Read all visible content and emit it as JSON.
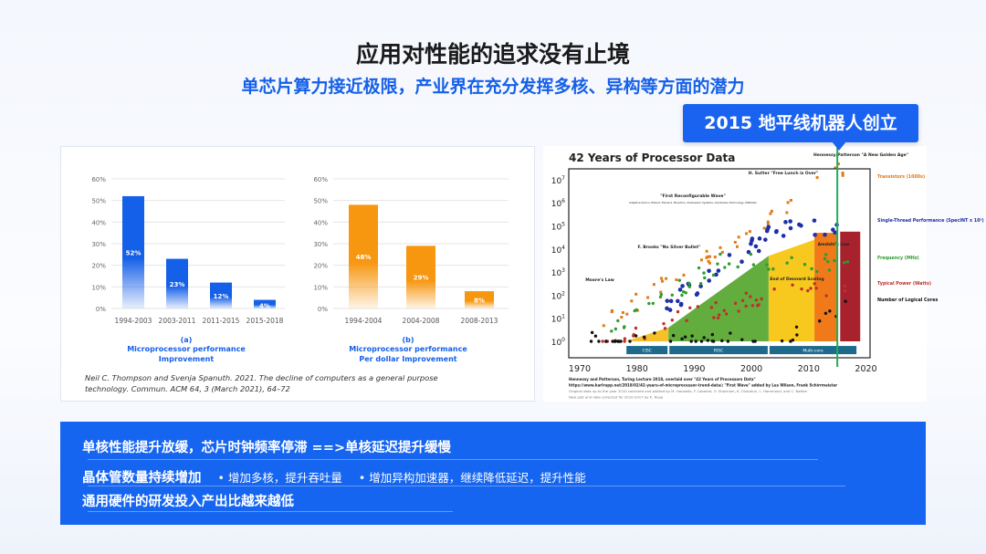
{
  "header": {
    "title": "应用对性能的追求没有止境",
    "subtitle": "单芯片算力接近极限，产业界在充分发挥多核、异构等方面的潜力"
  },
  "callout": {
    "text": "2015 地平线机器人创立",
    "color": "#1a63f0"
  },
  "chart_data": [
    {
      "type": "bar",
      "categories": [
        "1994-2003",
        "2003-2011",
        "2011-2015",
        "2015-2018"
      ],
      "values": [
        52,
        23,
        12,
        4
      ],
      "data_labels": [
        "52%",
        "23%",
        "12%",
        "4%"
      ],
      "ylim": [
        0,
        60
      ],
      "yticks": [
        "0%",
        "10%",
        "20%",
        "30%",
        "40%",
        "50%",
        "60%"
      ],
      "grid": true,
      "color": "#1560e8",
      "caption": [
        "(a)",
        "Microprocessor performance",
        "Improvement"
      ]
    },
    {
      "type": "bar",
      "categories": [
        "1994-2004",
        "2004-2008",
        "2008-2013"
      ],
      "values": [
        48,
        29,
        8
      ],
      "data_labels": [
        "48%",
        "29%",
        "8%"
      ],
      "ylim": [
        0,
        60
      ],
      "yticks": [
        "0%",
        "10%",
        "20%",
        "30%",
        "40%",
        "50%",
        "60%"
      ],
      "grid": true,
      "color": "#f7960f",
      "caption": [
        "(b)",
        "Microprocessor performance",
        "Per dollar Improvement"
      ]
    },
    {
      "type": "scatter",
      "title": "42 Years of Processor Data",
      "xlim": [
        1970,
        2020
      ],
      "xticks": [
        "1970",
        "1980",
        "1990",
        "2000",
        "2010",
        "2020"
      ],
      "y_scale": "log",
      "yticks": [
        "10^0",
        "10^1",
        "10^2",
        "10^3",
        "10^4",
        "10^5",
        "10^6",
        "10^7"
      ],
      "legend": [
        {
          "name": "Transistors (1000s)",
          "color": "#e07b1a"
        },
        {
          "name": "Single-Thread Performance (SpecINT x 10³)",
          "color": "#1f2fa8"
        },
        {
          "name": "Frequency (MHz)",
          "color": "#2e9c2e"
        },
        {
          "name": "Typical Power (Watts)",
          "color": "#c0302a"
        },
        {
          "name": "Number of Logical Cores",
          "color": "#111111"
        }
      ],
      "legend_placement": "right",
      "annotations": [
        "Moore's Law",
        "F. Brooks \"No Silver Bullet\"",
        "\"First Reconfigurable Wave\"",
        "Adaptive Silicon, Elixent, Triscend, Morphics, Chameleon Systems, Quicksilver Technology, Mathstar",
        "H. Sutter \"Free Lunch is Over\"",
        "Hennessy/Patterson \"A New Golden Age\"",
        "End of Dennard Scaling",
        "Amdahl's Law"
      ],
      "eras": [
        "CISC",
        "RISC",
        "Multi-core"
      ],
      "marker_year": 2015,
      "source": [
        "Hennessy and Patterson, Turing Lecture 2018, overlaid over \"42 Years of Processors Data\"",
        "https://www.karlrupp.net/2018/02/42-years-of-microprocessor-trend-data/; \"First Wave\" added by Les Wilson, Frank Schirrmeister",
        "Original data up to the year 2010 collected and plotted by M. Horowitz, F. Labonte, O. Shacham, K. Olukotun, L. Hammond, and C. Batten",
        "New plot and data collected for 2010-2017 by K. Rupp"
      ]
    }
  ],
  "citation": [
    "Neil C. Thompson and Svenja Spanuth. 2021. The decline of computers as a general purpose",
    "technology. Commun. ACM 64, 3 (March 2021), 64–72"
  ],
  "summary": {
    "rows": [
      {
        "text": "单核性能提升放缓，芯片时钟频率停滞 ==>单核延迟提升缓慢"
      },
      {
        "text": "晶体管数量持续增加",
        "notes": [
          "• 增加多核，提升吞吐量",
          "• 增加异构加速器，继续降低延迟，提升性能"
        ]
      },
      {
        "text": "通用硬件的研发投入产出比越来越低"
      }
    ],
    "color": "#1565f0"
  }
}
